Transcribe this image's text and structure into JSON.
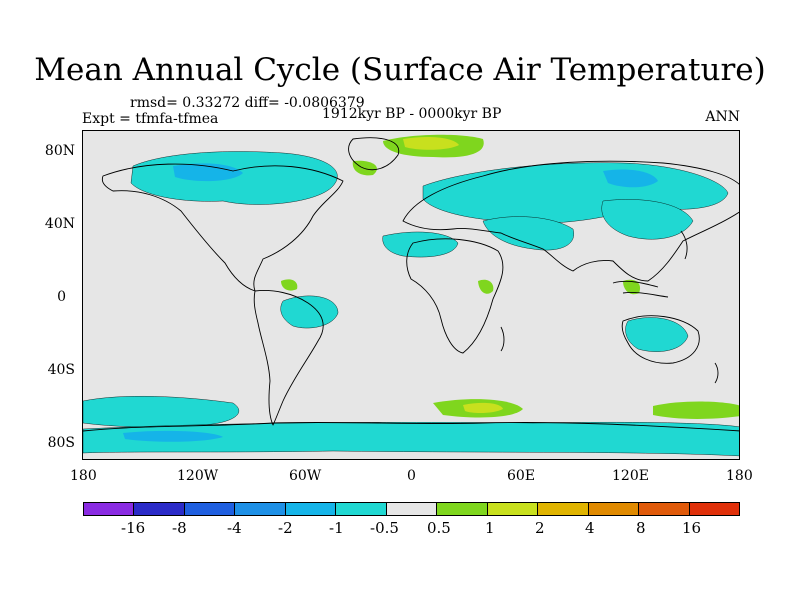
{
  "title": "Mean Annual Cycle (Surface Air Temperature)",
  "stats_line": "rmsd= 0.33272 diff= -0.0806379",
  "experiment": "Expt = tfmfa-tfmea",
  "period": "1912kyr BP - 0000kyr BP",
  "season": "ANN",
  "lat_ticks": [
    "80N",
    "40N",
    "0",
    "40S",
    "80S"
  ],
  "lon_ticks": [
    "180",
    "120W",
    "60W",
    "0",
    "60E",
    "120E",
    "180"
  ],
  "colorbar": {
    "labels": [
      "-16",
      "-8",
      "-4",
      "-2",
      "-1",
      "-0.5",
      "0.5",
      "1",
      "2",
      "4",
      "8",
      "16"
    ],
    "colors": [
      "#8a2be2",
      "#2b2bc8",
      "#1f5fe0",
      "#1e90e6",
      "#15b4e8",
      "#20d8d2",
      "#e6e6e6",
      "#7fd61e",
      "#c8e01e",
      "#e0b400",
      "#e08a00",
      "#e05a0a",
      "#e0300a"
    ]
  },
  "palette": {
    "land": "#e6e6e6",
    "cool": "#20d8d2",
    "cool_dark": "#15b4e8",
    "warm": "#7fd61e",
    "warm_strong": "#c8e01e",
    "coast": "#000000"
  }
}
